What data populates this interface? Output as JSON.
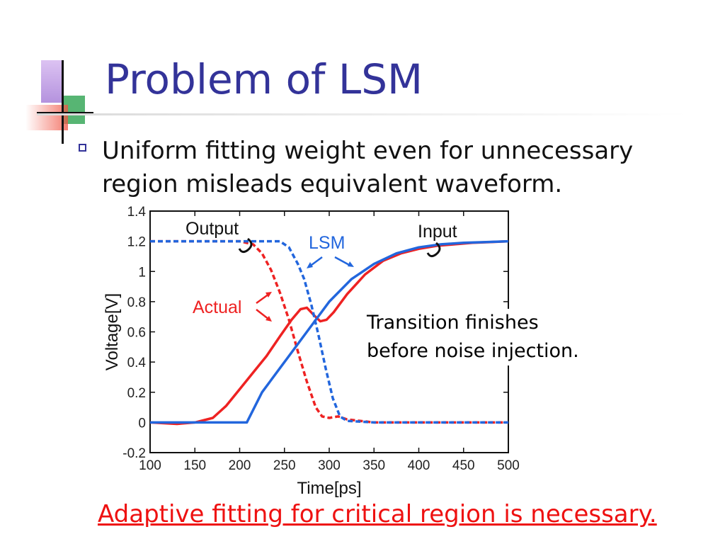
{
  "slide": {
    "title": "Problem of LSM",
    "bullet": "Uniform fitting weight even for unnecessary region misleads equivalent waveform.",
    "annotation_line1": "Transition finishes",
    "annotation_line2": "before noise injection.",
    "conclusion": "Adaptive fitting for critical region is necessary.",
    "colors": {
      "title": "#333399",
      "conclusion": "#ee1111",
      "bullet": "#333399"
    }
  },
  "chart_data": {
    "type": "line",
    "xlabel": "Time[ps]",
    "ylabel": "Voltage[V]",
    "xlim": [
      100,
      500
    ],
    "ylim": [
      -0.2,
      1.4
    ],
    "xticks": [
      100,
      150,
      200,
      250,
      300,
      350,
      400,
      450,
      500
    ],
    "yticks": [
      -0.2,
      0,
      0.2,
      0.4,
      0.6,
      0.8,
      1,
      1.2,
      1.4
    ],
    "grid": false,
    "annotations": [
      "Output",
      "Input",
      "LSM",
      "Actual"
    ],
    "series": [
      {
        "color": "#ee2222",
        "style": "solid",
        "x": [
          100,
          130,
          150,
          170,
          185,
          200,
          215,
          230,
          245,
          258,
          268,
          275,
          283,
          290,
          297,
          305,
          320,
          340,
          360,
          380,
          400,
          420,
          440,
          460,
          480,
          500
        ],
        "y": [
          0,
          -0.01,
          0,
          0.03,
          0.11,
          0.22,
          0.33,
          0.44,
          0.57,
          0.68,
          0.75,
          0.76,
          0.71,
          0.67,
          0.68,
          0.73,
          0.85,
          0.98,
          1.07,
          1.12,
          1.15,
          1.17,
          1.18,
          1.19,
          1.195,
          1.2
        ]
      },
      {
        "color": "#ee2222",
        "style": "dashed",
        "x": [
          100,
          150,
          200,
          215,
          225,
          235,
          245,
          255,
          265,
          275,
          285,
          292,
          300,
          310,
          320,
          350,
          400,
          450,
          500
        ],
        "y": [
          1.2,
          1.2,
          1.2,
          1.18,
          1.12,
          1.01,
          0.86,
          0.68,
          0.47,
          0.27,
          0.1,
          0.04,
          0.03,
          0.04,
          0.02,
          0,
          0,
          0,
          0
        ]
      },
      {
        "color": "#2266dd",
        "style": "solid",
        "x": [
          100,
          208,
          225,
          250,
          275,
          300,
          325,
          350,
          375,
          400,
          425,
          450,
          475,
          500
        ],
        "y": [
          0,
          0,
          0.2,
          0.4,
          0.6,
          0.8,
          0.95,
          1.05,
          1.12,
          1.16,
          1.18,
          1.19,
          1.195,
          1.2
        ]
      },
      {
        "color": "#2266dd",
        "style": "dashed",
        "x": [
          100,
          200,
          245,
          255,
          265,
          272,
          280,
          288,
          296,
          304,
          312,
          320,
          350,
          400,
          450,
          500
        ],
        "y": [
          1.2,
          1.2,
          1.2,
          1.16,
          1.05,
          0.95,
          0.78,
          0.58,
          0.36,
          0.16,
          0.04,
          0.01,
          0,
          0,
          0,
          0
        ]
      }
    ]
  }
}
